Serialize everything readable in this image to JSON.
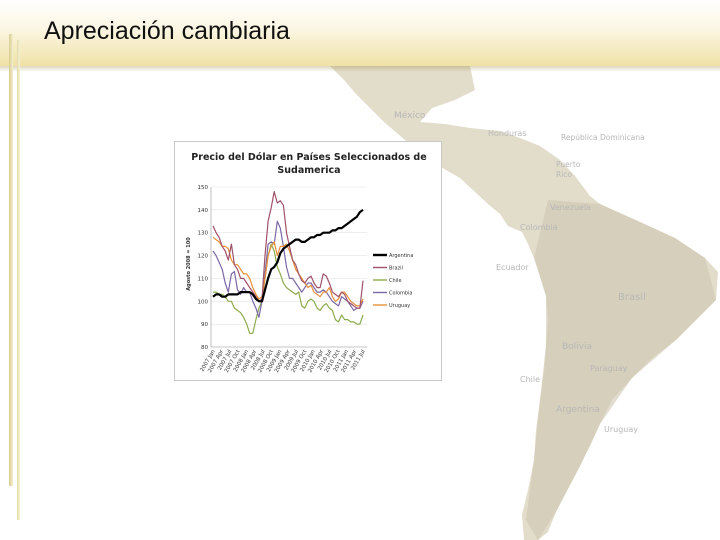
{
  "slide": {
    "title": "Apreciación cambiaria"
  },
  "map": {
    "labels": [
      {
        "name": "mexico",
        "text": "México"
      },
      {
        "name": "honduras",
        "text": "Honduras"
      },
      {
        "name": "dominicana",
        "text": "República Dominicana"
      },
      {
        "name": "puerto-rico-1",
        "text": "Puerto"
      },
      {
        "name": "puerto-rico-2",
        "text": "Rico"
      },
      {
        "name": "venezuela",
        "text": "Venezuela"
      },
      {
        "name": "colombia",
        "text": "Colombia"
      },
      {
        "name": "ecuador",
        "text": "Ecuador"
      },
      {
        "name": "brasil",
        "text": "Brasil"
      },
      {
        "name": "bolivia",
        "text": "Bolivia"
      },
      {
        "name": "paraguay",
        "text": "Paraguay"
      },
      {
        "name": "chile",
        "text": "Chile"
      },
      {
        "name": "argentina",
        "text": "Argentina"
      },
      {
        "name": "uruguay",
        "text": "Uruguay"
      }
    ]
  },
  "colors": {
    "Argentina": "#000000",
    "Brazil": "#a0526a",
    "Chile": "#8daa4e",
    "Colombia": "#7b68a6",
    "Uruguay": "#e8903a"
  },
  "chart_data": {
    "type": "line",
    "title": [
      "Precio del Dólar en Países Seleccionados de",
      "Sudamerica"
    ],
    "ylabel": "Agosto 2008 = 100",
    "ylim": [
      80,
      150
    ],
    "yticks": [
      80,
      90,
      100,
      110,
      120,
      130,
      140,
      150
    ],
    "xticks": [
      "2007 Jan",
      "2007 Apr",
      "2007 Jul",
      "2007 Oct",
      "2008 Jan",
      "2008 Apr",
      "2008 Jul",
      "2008 Oct",
      "2009 Jan",
      "2009 Apr",
      "2009 Jul",
      "2009 Oct",
      "2010 Jan",
      "2010 Apr",
      "2010 Jul",
      "2010 Oct",
      "2011 Jan",
      "2011 Apr",
      "2011 Jul"
    ],
    "legend_position": "right",
    "series": [
      {
        "name": "Argentina",
        "values": [
          102,
          103,
          103,
          102,
          102,
          103,
          103,
          103,
          103,
          104,
          104,
          104,
          104,
          103,
          101,
          100,
          100,
          105,
          110,
          114,
          115,
          117,
          121,
          123,
          124,
          125,
          126,
          127,
          127,
          126,
          126,
          127,
          128,
          128,
          129,
          129,
          130,
          130,
          130,
          131,
          131,
          132,
          132,
          133,
          134,
          135,
          136,
          137,
          139,
          140
        ]
      },
      {
        "name": "Brazil",
        "values": [
          133,
          130,
          128,
          124,
          122,
          118,
          125,
          116,
          114,
          110,
          110,
          108,
          106,
          104,
          102,
          100,
          101,
          120,
          135,
          141,
          148,
          143,
          144,
          142,
          130,
          124,
          118,
          116,
          112,
          109,
          108,
          110,
          111,
          108,
          106,
          106,
          112,
          111,
          108,
          104,
          103,
          102,
          104,
          103,
          100,
          99,
          98,
          97,
          97,
          109
        ]
      },
      {
        "name": "Chile",
        "values": [
          104,
          104,
          103,
          103,
          102,
          100,
          100,
          97,
          96,
          95,
          93,
          90,
          86,
          86,
          92,
          97,
          100,
          110,
          120,
          125,
          122,
          115,
          112,
          108,
          106,
          105,
          104,
          103,
          104,
          98,
          97,
          100,
          101,
          100,
          97,
          96,
          98,
          99,
          97,
          96,
          92,
          91,
          94,
          92,
          92,
          91,
          91,
          90,
          90,
          94
        ]
      },
      {
        "name": "Colombia",
        "values": [
          122,
          120,
          117,
          114,
          108,
          104,
          112,
          113,
          105,
          103,
          106,
          104,
          104,
          100,
          97,
          93,
          100,
          112,
          125,
          126,
          125,
          135,
          132,
          124,
          115,
          110,
          110,
          108,
          106,
          104,
          106,
          108,
          108,
          106,
          104,
          104,
          105,
          104,
          102,
          100,
          99,
          98,
          102,
          101,
          100,
          98,
          96,
          97,
          97,
          100
        ]
      },
      {
        "name": "Uruguay",
        "values": [
          128,
          127,
          126,
          124,
          124,
          123,
          118,
          116,
          116,
          114,
          112,
          112,
          110,
          106,
          103,
          101,
          102,
          110,
          120,
          124,
          126,
          120,
          124,
          124,
          125,
          122,
          118,
          114,
          112,
          110,
          108,
          106,
          107,
          104,
          103,
          102,
          104,
          104,
          106,
          102,
          100,
          101,
          104,
          104,
          102,
          100,
          99,
          98,
          98,
          101
        ]
      }
    ]
  }
}
